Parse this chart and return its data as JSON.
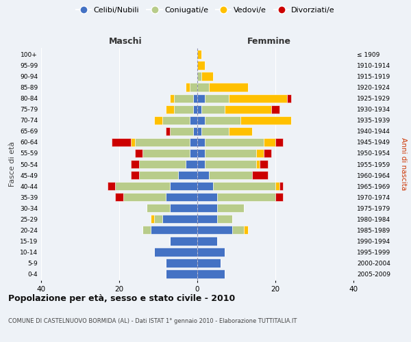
{
  "age_groups": [
    "0-4",
    "5-9",
    "10-14",
    "15-19",
    "20-24",
    "25-29",
    "30-34",
    "35-39",
    "40-44",
    "45-49",
    "50-54",
    "55-59",
    "60-64",
    "65-69",
    "70-74",
    "75-79",
    "80-84",
    "85-89",
    "90-94",
    "95-99",
    "100+"
  ],
  "birth_years": [
    "2005-2009",
    "2000-2004",
    "1995-1999",
    "1990-1994",
    "1985-1989",
    "1980-1984",
    "1975-1979",
    "1970-1974",
    "1965-1969",
    "1960-1964",
    "1955-1959",
    "1950-1954",
    "1945-1949",
    "1940-1944",
    "1935-1939",
    "1930-1934",
    "1925-1929",
    "1920-1924",
    "1915-1919",
    "1910-1914",
    "≤ 1909"
  ],
  "maschi": {
    "celibi": [
      8,
      8,
      11,
      7,
      12,
      9,
      7,
      8,
      7,
      5,
      3,
      2,
      2,
      1,
      2,
      1,
      1,
      0,
      0,
      0,
      0
    ],
    "coniugati": [
      0,
      0,
      0,
      0,
      2,
      2,
      6,
      11,
      14,
      10,
      12,
      12,
      14,
      6,
      7,
      5,
      5,
      2,
      0,
      0,
      0
    ],
    "vedovi": [
      0,
      0,
      0,
      0,
      0,
      1,
      0,
      0,
      0,
      0,
      0,
      0,
      1,
      0,
      2,
      2,
      1,
      1,
      0,
      0,
      0
    ],
    "divorziati": [
      0,
      0,
      0,
      0,
      0,
      0,
      0,
      2,
      2,
      2,
      2,
      2,
      5,
      1,
      0,
      0,
      0,
      0,
      0,
      0,
      0
    ]
  },
  "femmine": {
    "nubili": [
      7,
      6,
      7,
      5,
      9,
      5,
      5,
      5,
      4,
      3,
      2,
      2,
      2,
      1,
      2,
      1,
      2,
      0,
      0,
      0,
      0
    ],
    "coniugate": [
      0,
      0,
      0,
      0,
      3,
      4,
      7,
      15,
      16,
      11,
      13,
      13,
      15,
      7,
      9,
      6,
      6,
      3,
      1,
      0,
      0
    ],
    "vedove": [
      0,
      0,
      0,
      0,
      1,
      0,
      0,
      0,
      1,
      0,
      1,
      2,
      3,
      6,
      13,
      12,
      15,
      10,
      3,
      2,
      1
    ],
    "divorziate": [
      0,
      0,
      0,
      0,
      0,
      0,
      0,
      2,
      1,
      4,
      2,
      2,
      2,
      0,
      0,
      2,
      1,
      0,
      0,
      0,
      0
    ]
  },
  "colors": {
    "celibi": "#4472c4",
    "coniugati": "#b8cc8a",
    "vedovi": "#ffc000",
    "divorziati": "#cc0000"
  },
  "xlim": 40,
  "title": "Popolazione per età, sesso e stato civile - 2010",
  "subtitle": "COMUNE DI CASTELNUOVO BORMIDA (AL) - Dati ISTAT 1° gennaio 2010 - Elaborazione TUTTITALIA.IT",
  "xlabel_maschi": "Maschi",
  "xlabel_femmine": "Femmine",
  "ylabel": "Fasce di età",
  "ylabel_right": "Anni di nascita",
  "bg_color": "#eef2f7",
  "plot_bg": "#eef2f7"
}
